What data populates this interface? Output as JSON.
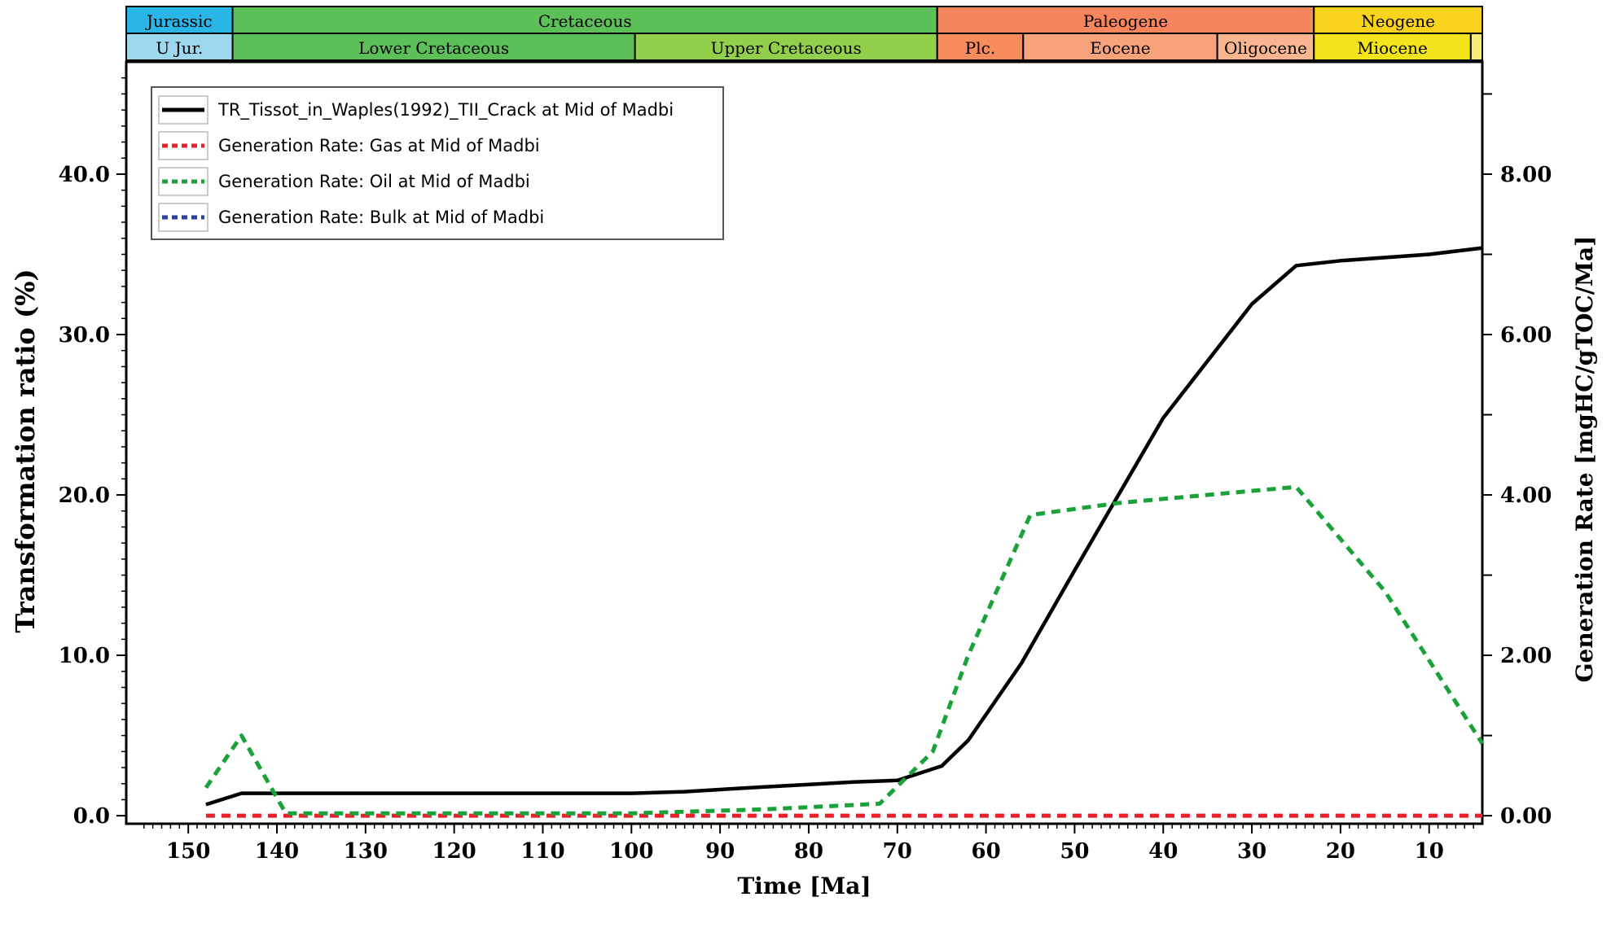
{
  "chart_data": {
    "type": "line",
    "xlabel": "Time [Ma]",
    "ylabel": "Transformation ratio (%)",
    "y2label": "Generation Rate [mgHC/gTOC/Ma]",
    "x_reversed": true,
    "xlim": [
      157,
      4
    ],
    "ylim": [
      -0.5,
      47
    ],
    "y2lim": [
      -0.1,
      9.4
    ],
    "x_ticks": [
      "150",
      "140",
      "130",
      "120",
      "110",
      "100",
      "90",
      "80",
      "70",
      "60",
      "50",
      "40",
      "30",
      "20",
      "10"
    ],
    "y_ticks": [
      "0.0",
      "10.0",
      "20.0",
      "30.0",
      "40.0"
    ],
    "y2_ticks": [
      "0.00",
      "2.00",
      "4.00",
      "6.00",
      "8.00"
    ],
    "series": [
      {
        "name": "TR_Tissot_in_Waples(1992)_TII_Crack at Mid of Madbi",
        "axis": "left",
        "color": "#000000",
        "style": "solid",
        "points": [
          [
            148,
            0.7
          ],
          [
            144,
            1.4
          ],
          [
            100,
            1.4
          ],
          [
            94,
            1.5
          ],
          [
            85,
            1.8
          ],
          [
            75,
            2.1
          ],
          [
            70,
            2.2
          ],
          [
            65,
            3.1
          ],
          [
            62,
            4.7
          ],
          [
            56,
            9.5
          ],
          [
            50,
            15.3
          ],
          [
            40,
            24.8
          ],
          [
            30,
            31.9
          ],
          [
            25,
            34.3
          ],
          [
            20,
            34.6
          ],
          [
            10,
            35.0
          ],
          [
            4,
            35.4
          ]
        ]
      },
      {
        "name": "Generation Rate: Gas at Mid of Madbi",
        "axis": "right",
        "color": "#e8202a",
        "style": "dotted",
        "points": [
          [
            148,
            0.0
          ],
          [
            4,
            0.0
          ]
        ]
      },
      {
        "name": "Generation Rate: Oil at Mid of Madbi",
        "axis": "right",
        "color": "#1aa13a",
        "style": "dotted",
        "points": [
          [
            148,
            0.35
          ],
          [
            144,
            1.0
          ],
          [
            139,
            0.03
          ],
          [
            100,
            0.03
          ],
          [
            85,
            0.08
          ],
          [
            72,
            0.15
          ],
          [
            66,
            0.8
          ],
          [
            62,
            2.0
          ],
          [
            55,
            3.75
          ],
          [
            45,
            3.9
          ],
          [
            35,
            4.0
          ],
          [
            25,
            4.1
          ],
          [
            15,
            2.8
          ],
          [
            4,
            0.9
          ]
        ]
      },
      {
        "name": "Generation Rate: Bulk at Mid of Madbi",
        "axis": "right",
        "color": "#2b3ea8",
        "style": "dotted",
        "points": []
      }
    ],
    "legend_position": "top-left"
  },
  "timescale": {
    "top_row": [
      {
        "label": "Jurassic",
        "from": 157,
        "to": 145,
        "color": "#29b6e6"
      },
      {
        "label": "Cretaceous",
        "from": 145,
        "to": 65.5,
        "color": "#5dbf58"
      },
      {
        "label": "Paleogene",
        "from": 65.5,
        "to": 23.0,
        "color": "#f5855c"
      },
      {
        "label": "Neogene",
        "from": 23.0,
        "to": 4,
        "color": "#f9d21b"
      }
    ],
    "bottom_row": [
      {
        "label": "U Jur.",
        "from": 157,
        "to": 145,
        "color": "#9ed8ee"
      },
      {
        "label": "Lower Cretaceous",
        "from": 145,
        "to": 99.6,
        "color": "#5dbf58"
      },
      {
        "label": "Upper Cretaceous",
        "from": 99.6,
        "to": 65.5,
        "color": "#92cf4b"
      },
      {
        "label": "Plc.",
        "from": 65.5,
        "to": 55.8,
        "color": "#f68c5e"
      },
      {
        "label": "Eocene",
        "from": 55.8,
        "to": 33.9,
        "color": "#f7a27a"
      },
      {
        "label": "Oligocene",
        "from": 33.9,
        "to": 23.0,
        "color": "#f9b58f"
      },
      {
        "label": "Miocene",
        "from": 23.0,
        "to": 5.3,
        "color": "#f2e31a"
      },
      {
        "label": "",
        "from": 5.3,
        "to": 4,
        "color": "#f5ec7a"
      }
    ]
  }
}
